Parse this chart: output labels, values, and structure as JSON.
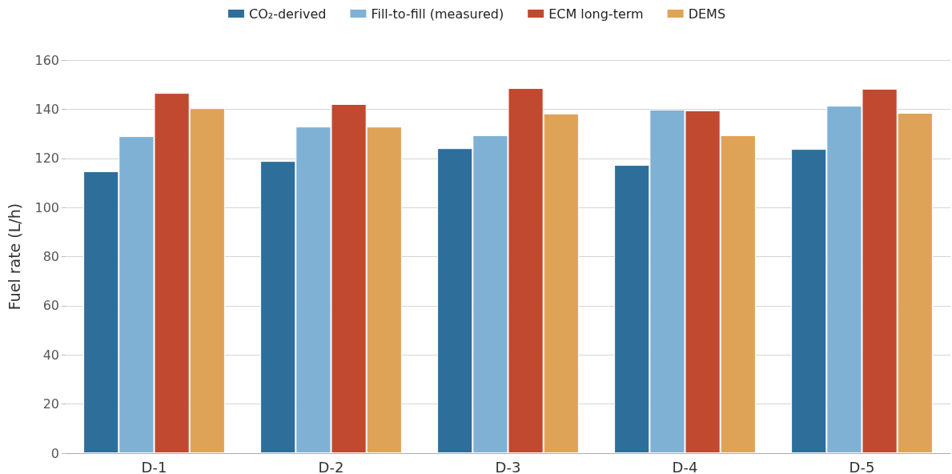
{
  "chart_data": {
    "type": "bar",
    "ylabel": "Fuel rate (L/h)",
    "categories": [
      "D-1",
      "D-2",
      "D-3",
      "D-4",
      "D-5"
    ],
    "series": [
      {
        "name": "CO₂-derived",
        "color": "#2e6e9b",
        "values": [
          114.7,
          118.9,
          124.1,
          117.3,
          123.8
        ]
      },
      {
        "name": "Fill-to-fill (measured)",
        "color": "#7fb1d4",
        "values": [
          129.0,
          132.9,
          129.4,
          139.8,
          141.4
        ]
      },
      {
        "name": "ECM long-term",
        "color": "#c0492f",
        "values": [
          146.6,
          142.1,
          148.6,
          139.5,
          148.3
        ]
      },
      {
        "name": "DEMS",
        "color": "#dfa358",
        "values": [
          140.4,
          132.9,
          138.2,
          129.4,
          138.5
        ]
      }
    ],
    "ylim": [
      0,
      160
    ],
    "yticks": [
      0,
      20,
      40,
      60,
      80,
      100,
      120,
      140,
      160
    ],
    "grid": "y",
    "legend": "top"
  }
}
